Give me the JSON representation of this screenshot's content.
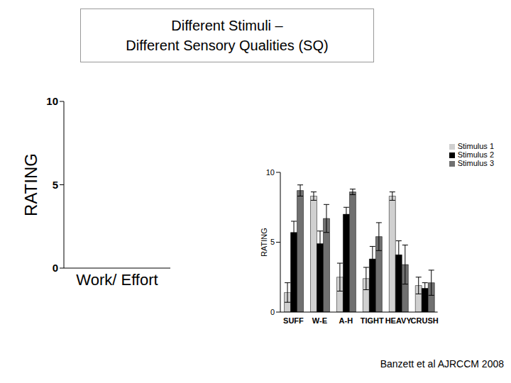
{
  "title": [
    "Different Stimuli –",
    "Different Sensory Qualities (SQ)"
  ],
  "source": "Banzett et al AJRCCM 2008",
  "chart_data": [
    {
      "type": "bar",
      "categories": [
        "Work/ Effort"
      ],
      "ylabel": "RATING",
      "ylim": [
        0,
        10
      ],
      "yticks": [
        0,
        5,
        10
      ],
      "series": [
        {
          "name": "Work/ Effort",
          "color": "#8b0000",
          "values": [
            0
          ]
        }
      ]
    },
    {
      "type": "bar",
      "categories": [
        "SUFF",
        "W-E",
        "A-H",
        "TIGHT",
        "HEAVY",
        "CRUSH"
      ],
      "ylabel": "RATING",
      "ylim": [
        0,
        10
      ],
      "yticks": [
        0,
        5,
        10
      ],
      "legend": "top-right",
      "series": [
        {
          "name": "Stimulus 1",
          "color": "#d0d0d0",
          "values": [
            1.4,
            8.3,
            2.5,
            2.4,
            8.3,
            1.9
          ],
          "errors": [
            0.7,
            0.3,
            1.0,
            0.8,
            0.3,
            0.6
          ]
        },
        {
          "name": "Stimulus 2",
          "color": "#000000",
          "values": [
            5.7,
            4.9,
            7.0,
            3.8,
            4.1,
            1.7
          ],
          "errors": [
            0.8,
            0.9,
            0.5,
            0.9,
            1.0,
            0.4
          ]
        },
        {
          "name": "Stimulus 3",
          "color": "#707070",
          "values": [
            8.7,
            6.7,
            8.6,
            5.4,
            3.4,
            2.1
          ],
          "errors": [
            0.4,
            1.0,
            0.2,
            1.0,
            1.4,
            0.9
          ]
        }
      ]
    }
  ]
}
